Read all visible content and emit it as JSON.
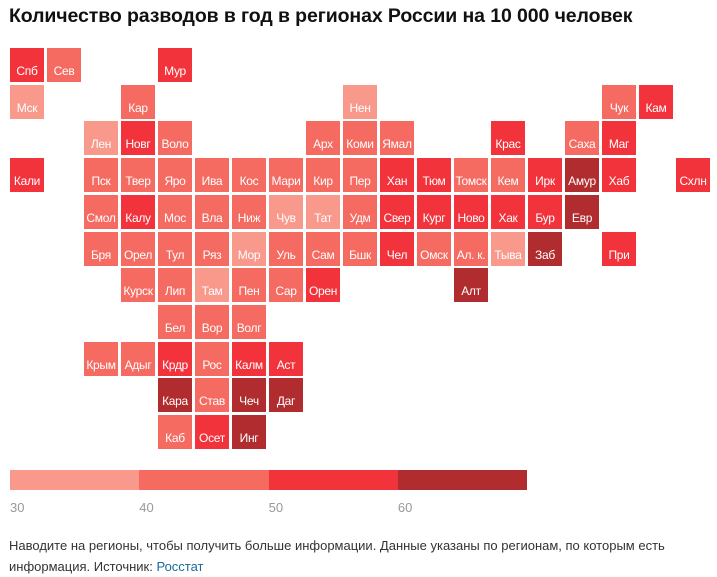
{
  "chart_data": {
    "type": "heatmap",
    "title": "Количество разводов в год в регионах России на 10 000 человек",
    "legend": {
      "ticks": [
        "30",
        "40",
        "50",
        "60"
      ],
      "bins": [
        {
          "range": [
            30,
            40
          ],
          "color": "#f8998c"
        },
        {
          "range": [
            40,
            50
          ],
          "color": "#f56b61"
        },
        {
          "range": [
            50,
            60
          ],
          "color": "#f2333b"
        },
        {
          "range": [
            60,
            70
          ],
          "color": "#b02c2e"
        }
      ]
    },
    "regions": [
      {
        "name": "Спб",
        "bin": 2
      },
      {
        "name": "Сев",
        "bin": 1
      },
      {
        "name": "Мур",
        "bin": 2
      },
      {
        "name": "Мск",
        "bin": 0
      },
      {
        "name": "Кар",
        "bin": 1
      },
      {
        "name": "Нен",
        "bin": 0
      },
      {
        "name": "Чук",
        "bin": 1
      },
      {
        "name": "Кам",
        "bin": 2
      },
      {
        "name": "Лен",
        "bin": 0
      },
      {
        "name": "Новг",
        "bin": 2
      },
      {
        "name": "Воло",
        "bin": 1
      },
      {
        "name": "Арх",
        "bin": 1
      },
      {
        "name": "Коми",
        "bin": 1
      },
      {
        "name": "Ямал",
        "bin": 1
      },
      {
        "name": "Крас",
        "bin": 2
      },
      {
        "name": "Саха",
        "bin": 1
      },
      {
        "name": "Маг",
        "bin": 2
      },
      {
        "name": "Кали",
        "bin": 2
      },
      {
        "name": "Пск",
        "bin": 1
      },
      {
        "name": "Твер",
        "bin": 1
      },
      {
        "name": "Яро",
        "bin": 1
      },
      {
        "name": "Ива",
        "bin": 1
      },
      {
        "name": "Кос",
        "bin": 1
      },
      {
        "name": "Мари",
        "bin": 1
      },
      {
        "name": "Кир",
        "bin": 1
      },
      {
        "name": "Пер",
        "bin": 1
      },
      {
        "name": "Хан",
        "bin": 2
      },
      {
        "name": "Тюм",
        "bin": 2
      },
      {
        "name": "Томск",
        "bin": 1
      },
      {
        "name": "Кем",
        "bin": 1
      },
      {
        "name": "Ирк",
        "bin": 2
      },
      {
        "name": "Амур",
        "bin": 3
      },
      {
        "name": "Хаб",
        "bin": 2
      },
      {
        "name": "Схлн",
        "bin": 2
      },
      {
        "name": "Смол",
        "bin": 1
      },
      {
        "name": "Калу",
        "bin": 2
      },
      {
        "name": "Мос",
        "bin": 1
      },
      {
        "name": "Вла",
        "bin": 1
      },
      {
        "name": "Ниж",
        "bin": 1
      },
      {
        "name": "Чув",
        "bin": 0
      },
      {
        "name": "Тат",
        "bin": 0
      },
      {
        "name": "Удм",
        "bin": 1
      },
      {
        "name": "Свер",
        "bin": 2
      },
      {
        "name": "Кург",
        "bin": 2
      },
      {
        "name": "Ново",
        "bin": 2
      },
      {
        "name": "Хак",
        "bin": 2
      },
      {
        "name": "Бур",
        "bin": 2
      },
      {
        "name": "Евр",
        "bin": 3
      },
      {
        "name": "Бря",
        "bin": 1
      },
      {
        "name": "Орел",
        "bin": 1
      },
      {
        "name": "Тул",
        "bin": 1
      },
      {
        "name": "Ряз",
        "bin": 1
      },
      {
        "name": "Мор",
        "bin": 0
      },
      {
        "name": "Уль",
        "bin": 1
      },
      {
        "name": "Сам",
        "bin": 1
      },
      {
        "name": "Бшк",
        "bin": 1
      },
      {
        "name": "Чел",
        "bin": 2
      },
      {
        "name": "Омск",
        "bin": 1
      },
      {
        "name": "Ал. к.",
        "bin": 1
      },
      {
        "name": "Тыва",
        "bin": 0
      },
      {
        "name": "Заб",
        "bin": 3
      },
      {
        "name": "При",
        "bin": 2
      },
      {
        "name": "Курск",
        "bin": 1
      },
      {
        "name": "Лип",
        "bin": 1
      },
      {
        "name": "Там",
        "bin": 0
      },
      {
        "name": "Пен",
        "bin": 1
      },
      {
        "name": "Сар",
        "bin": 1
      },
      {
        "name": "Орен",
        "bin": 2
      },
      {
        "name": "Алт",
        "bin": 3
      },
      {
        "name": "Бел",
        "bin": 1
      },
      {
        "name": "Вор",
        "bin": 1
      },
      {
        "name": "Волг",
        "bin": 1
      },
      {
        "name": "Крым",
        "bin": 1
      },
      {
        "name": "Адыг",
        "bin": 1
      },
      {
        "name": "Крдр",
        "bin": 2
      },
      {
        "name": "Рос",
        "bin": 1
      },
      {
        "name": "Калм",
        "bin": 2
      },
      {
        "name": "Аст",
        "bin": 2
      },
      {
        "name": "Кара",
        "bin": 3
      },
      {
        "name": "Став",
        "bin": 1
      },
      {
        "name": "Чеч",
        "bin": 3
      },
      {
        "name": "Даг",
        "bin": 3
      },
      {
        "name": "Каб",
        "bin": 1
      },
      {
        "name": "Осет",
        "bin": 2
      },
      {
        "name": "Инг",
        "bin": 3
      }
    ]
  },
  "footer": {
    "text": "Наводите на регионы, чтобы получить больше информации. Данные указаны по регионам, по которым есть информация. Источник: ",
    "source_link": "Росстат"
  }
}
